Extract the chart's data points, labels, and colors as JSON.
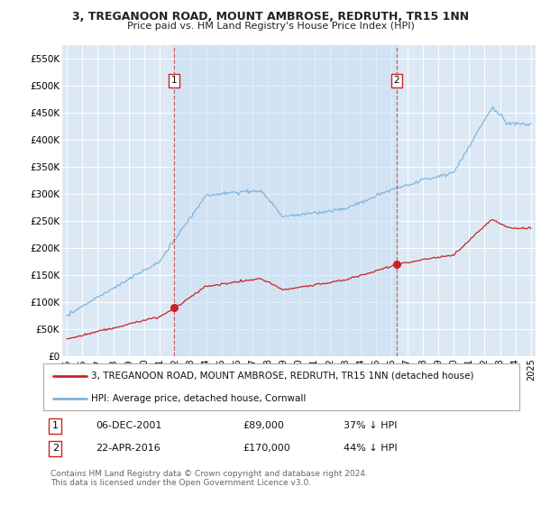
{
  "title1": "3, TREGANOON ROAD, MOUNT AMBROSE, REDRUTH, TR15 1NN",
  "title2": "Price paid vs. HM Land Registry's House Price Index (HPI)",
  "ylim": [
    0,
    575000
  ],
  "yticks": [
    0,
    50000,
    100000,
    150000,
    200000,
    250000,
    300000,
    350000,
    400000,
    450000,
    500000,
    550000
  ],
  "ytick_labels": [
    "£0",
    "£50K",
    "£100K",
    "£150K",
    "£200K",
    "£250K",
    "£300K",
    "£350K",
    "£400K",
    "£450K",
    "£500K",
    "£550K"
  ],
  "xlim_start": 1994.7,
  "xlim_end": 2025.3,
  "bg_color": "#dce9f5",
  "plot_bg": "#dce9f5",
  "grid_color": "#ffffff",
  "hpi_color": "#7fb5dd",
  "price_color": "#cc2222",
  "sale1_date": 2001.92,
  "sale1_price": 89000,
  "sale2_date": 2016.31,
  "sale2_price": 170000,
  "legend_line1": "3, TREGANOON ROAD, MOUNT AMBROSE, REDRUTH, TR15 1NN (detached house)",
  "legend_line2": "HPI: Average price, detached house, Cornwall",
  "annotation1_label": "1",
  "annotation1_date": "06-DEC-2001",
  "annotation1_price": "£89,000",
  "annotation1_hpi": "37% ↓ HPI",
  "annotation2_label": "2",
  "annotation2_date": "22-APR-2016",
  "annotation2_price": "£170,000",
  "annotation2_hpi": "44% ↓ HPI",
  "footer": "Contains HM Land Registry data © Crown copyright and database right 2024.\nThis data is licensed under the Open Government Licence v3.0."
}
